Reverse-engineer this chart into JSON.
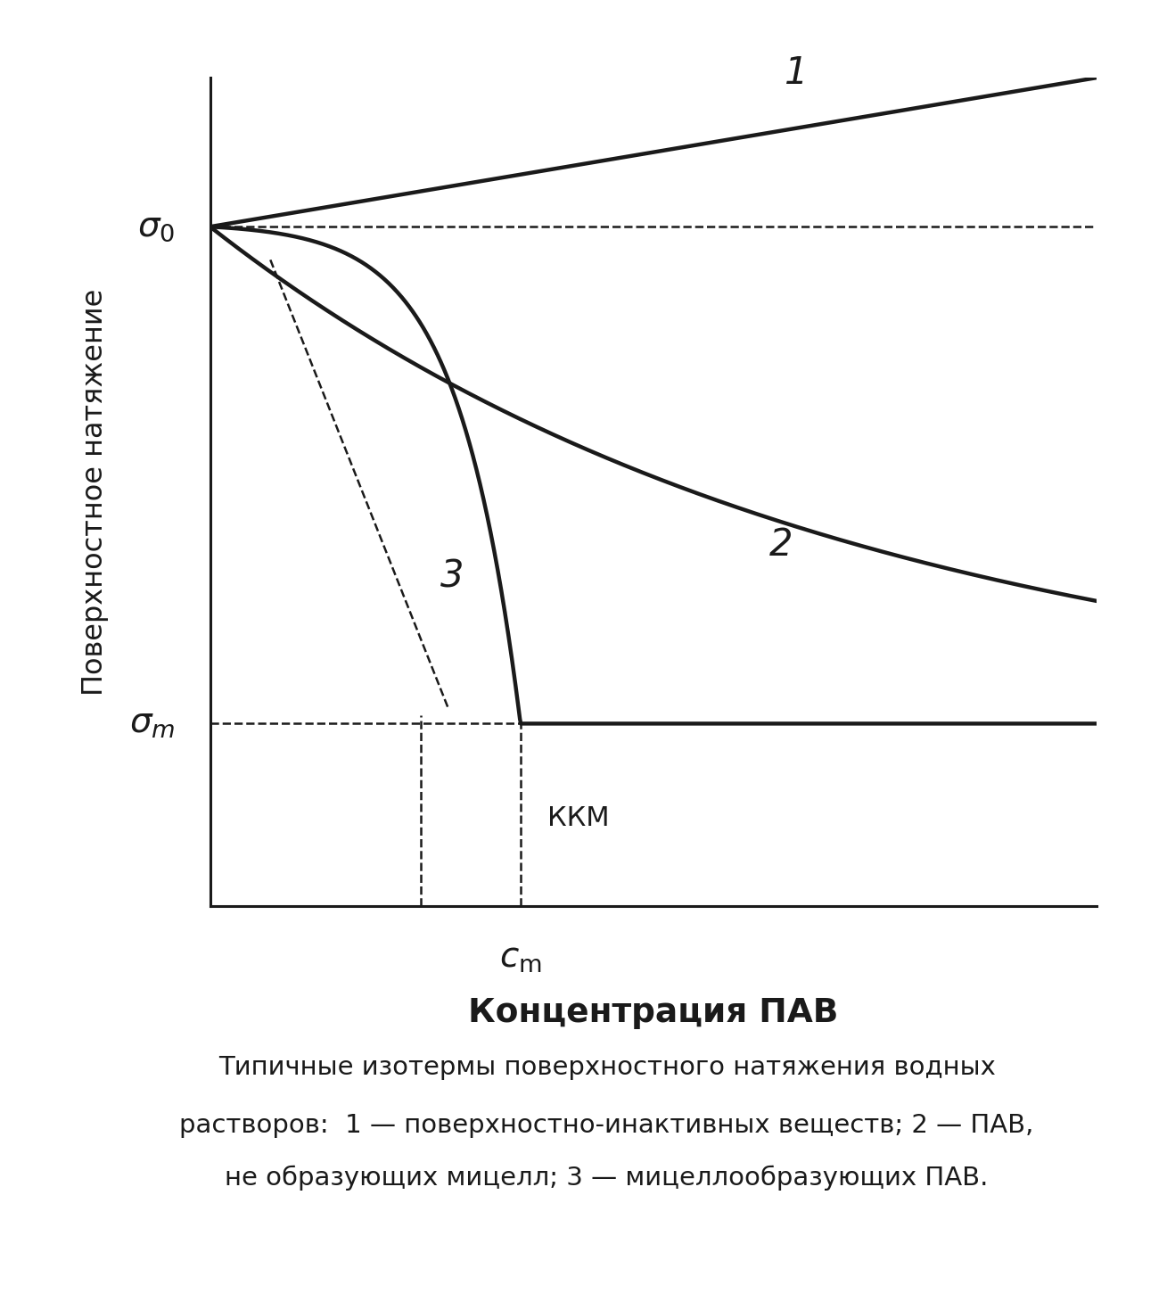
{
  "xlabel": "Концентрация ПАВ",
  "ylabel": "Поверхностное натяжение",
  "caption_line1": "Типичные изотермы поверхностного натяжения водных",
  "caption_line2": "растворов:  1 — поверхностно-инактивных веществ; 2 — ПАВ,",
  "caption_line3": "не образующих мицелл; 3 — мицеллообразующих ПАВ.",
  "line_color": "#1a1a1a",
  "bg_color": "#ffffff",
  "sigma0": 0.82,
  "sigma_m": 0.22,
  "c_m": 0.35,
  "x_max": 1.0,
  "y_min": 0.0,
  "y_max": 1.0,
  "lw_thick": 3.2,
  "lw_thin": 1.3,
  "lw_dash": 1.8
}
